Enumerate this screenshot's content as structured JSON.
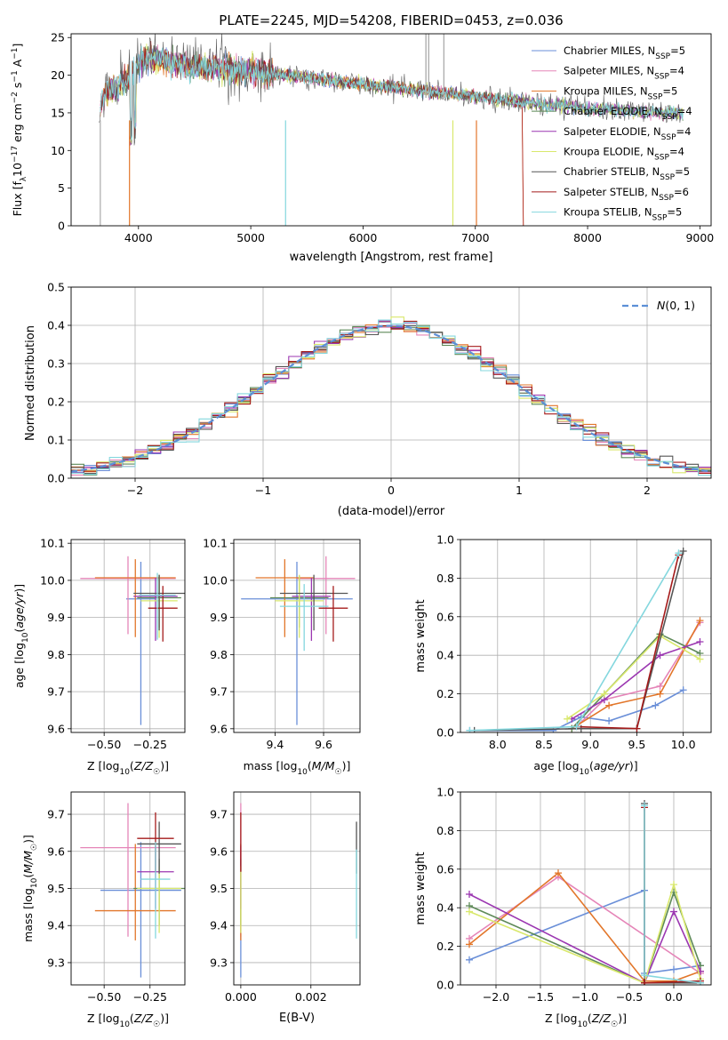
{
  "figure": {
    "title": "PLATE=2245, MJD=54208, FIBERID=0453, z=0.036"
  },
  "colors": {
    "series": [
      "#6a8fd8",
      "#e585b8",
      "#e2762a",
      "#5e8a58",
      "#9b37b1",
      "#d9e86c",
      "#4c4c4c",
      "#a51b1b",
      "#84d7de"
    ],
    "gaussian": "#5b8fd6",
    "grid": "#b0b0b0"
  },
  "chart_data": [
    {
      "id": "spectrum",
      "type": "line",
      "xlabel": "wavelength [Angstrom, rest frame]",
      "ylabel": "Flux [f_λ 10^-17 erg cm^-2 s^-1 A^-1]",
      "xlim": [
        3400,
        9100
      ],
      "ylim": [
        0,
        25.5
      ],
      "xticks": [
        4000,
        5000,
        6000,
        7000,
        8000,
        9000
      ],
      "yticks": [
        0,
        5,
        10,
        15,
        20,
        25
      ],
      "grid": false,
      "legend": "top-right",
      "data_anchors": {
        "x": [
          3650,
          3700,
          3800,
          3900,
          4000,
          4100,
          4200,
          4300,
          4500,
          4700,
          5000,
          5300,
          5600,
          5900,
          6200,
          6500,
          6800,
          7100,
          7400,
          7600,
          7800,
          8000,
          8200,
          8500,
          8800
        ],
        "y": [
          15.5,
          17.5,
          18.5,
          19.5,
          21.5,
          22.5,
          22.0,
          21.5,
          21.0,
          21.0,
          20.5,
          20.0,
          19.5,
          19.0,
          18.5,
          18.0,
          17.5,
          17.0,
          16.5,
          16.0,
          16.0,
          15.5,
          15.5,
          15.0,
          15.0
        ]
      },
      "series": [
        {
          "label": "Chabrier MILES",
          "nssp": "5"
        },
        {
          "label": "Salpeter MILES",
          "nssp": "4"
        },
        {
          "label": "Kroupa MILES",
          "nssp": "5"
        },
        {
          "label": "Chabrier ELODIE",
          "nssp": "4"
        },
        {
          "label": "Salpeter ELODIE",
          "nssp": "4"
        },
        {
          "label": "Kroupa ELODIE",
          "nssp": "4"
        },
        {
          "label": "Chabrier STELIB",
          "nssp": "5"
        },
        {
          "label": "Salpeter STELIB",
          "nssp": "6"
        },
        {
          "label": "Kroupa STELIB",
          "nssp": "5"
        }
      ]
    },
    {
      "id": "residuals",
      "type": "histogram",
      "xlabel": "(data-model)/error",
      "ylabel": "Normed distribution",
      "xlim": [
        -2.5,
        2.5
      ],
      "ylim": [
        0,
        0.5
      ],
      "xticks": [
        -2,
        -1,
        0,
        1,
        2
      ],
      "yticks": [
        0.0,
        0.1,
        0.2,
        0.3,
        0.4,
        0.5
      ],
      "grid": true,
      "legend": "top-right",
      "legend_label": "N(0,1)",
      "bin_width": 0.1,
      "bin_start": -2.5
    },
    {
      "id": "age-vs-Z",
      "type": "errorbar",
      "xlabel": "Z [log10(Z/Z☉)]",
      "ylabel": "age [log10(age/yr)]",
      "xlim": [
        -0.68,
        -0.06
      ],
      "ylim": [
        9.59,
        10.11
      ],
      "xticks": [
        -0.5,
        -0.25
      ],
      "yticks": [
        9.6,
        9.7,
        9.8,
        9.9,
        10.0,
        10.1
      ],
      "grid": true,
      "points": [
        {
          "x": -0.3,
          "xerr": 0.08,
          "y": 9.95,
          "yerr": [
            0.34,
            0.1
          ]
        },
        {
          "x": -0.37,
          "xerr": 0.26,
          "y": 10.005,
          "yerr": [
            0.15,
            0.06
          ]
        },
        {
          "x": -0.33,
          "xerr": 0.22,
          "y": 10.007,
          "yerr": [
            0.16,
            0.05
          ]
        },
        {
          "x": -0.2,
          "xerr": 0.12,
          "y": 9.953,
          "yerr": [
            0.08,
            0.06
          ]
        },
        {
          "x": -0.22,
          "xerr": 0.12,
          "y": 9.957,
          "yerr": [
            0.12,
            0.05
          ]
        },
        {
          "x": -0.2,
          "xerr": 0.1,
          "y": 9.945,
          "yerr": [
            0.1,
            0.07
          ]
        },
        {
          "x": -0.2,
          "xerr": 0.14,
          "y": 9.965,
          "yerr": [
            0.1,
            0.05
          ]
        },
        {
          "x": -0.18,
          "xerr": 0.08,
          "y": 9.925,
          "yerr": [
            0.09,
            0.06
          ]
        },
        {
          "x": -0.21,
          "xerr": 0.1,
          "y": 9.96,
          "yerr": [
            0.12,
            0.06
          ]
        }
      ]
    },
    {
      "id": "age-vs-mass",
      "type": "errorbar",
      "xlabel": "mass [log10(M/M☉)]",
      "ylabel": "",
      "xlim": [
        9.23,
        9.75
      ],
      "ylim": [
        9.59,
        10.11
      ],
      "xticks": [
        9.4,
        9.6
      ],
      "yticks": [
        9.6,
        9.7,
        9.8,
        9.9,
        10.0,
        10.1
      ],
      "grid": true,
      "points": [
        {
          "x": 9.49,
          "xerr": 0.23,
          "y": 9.95,
          "yerr": [
            0.34,
            0.1
          ]
        },
        {
          "x": 9.61,
          "xerr": 0.12,
          "y": 10.005,
          "yerr": [
            0.15,
            0.06
          ]
        },
        {
          "x": 9.44,
          "xerr": 0.12,
          "y": 10.007,
          "yerr": [
            0.16,
            0.05
          ]
        },
        {
          "x": 9.5,
          "xerr": 0.12,
          "y": 9.953,
          "yerr": [
            0.08,
            0.06
          ]
        },
        {
          "x": 9.55,
          "xerr": 0.08,
          "y": 9.957,
          "yerr": [
            0.12,
            0.05
          ]
        },
        {
          "x": 9.5,
          "xerr": 0.1,
          "y": 9.945,
          "yerr": [
            0.1,
            0.07
          ]
        },
        {
          "x": 9.56,
          "xerr": 0.14,
          "y": 9.965,
          "yerr": [
            0.1,
            0.05
          ]
        },
        {
          "x": 9.64,
          "xerr": 0.06,
          "y": 9.925,
          "yerr": [
            0.09,
            0.06
          ]
        },
        {
          "x": 9.52,
          "xerr": 0.1,
          "y": 9.93,
          "yerr": [
            0.12,
            0.06
          ]
        }
      ]
    },
    {
      "id": "mass-weight-vs-age",
      "type": "line",
      "xlabel": "age [log10(age/yr)]",
      "ylabel": "mass weight",
      "xlim": [
        7.6,
        10.3
      ],
      "ylim": [
        0,
        1
      ],
      "xticks": [
        8.0,
        8.5,
        9.0,
        9.5,
        10.0
      ],
      "yticks": [
        0.0,
        0.2,
        0.4,
        0.6,
        0.8,
        1.0
      ],
      "grid": true,
      "series": [
        {
          "x": [
            7.7,
            8.6,
            8.9,
            9.2,
            9.7,
            10.0
          ],
          "y": [
            0.01,
            0.01,
            0.08,
            0.06,
            0.14,
            0.22
          ]
        },
        {
          "x": [
            8.85,
            9.15,
            9.75,
            10.18
          ],
          "y": [
            0.03,
            0.17,
            0.24,
            0.57
          ]
        },
        {
          "x": [
            8.8,
            9.2,
            9.75,
            10.18
          ],
          "y": [
            0.02,
            0.14,
            0.2,
            0.58
          ]
        },
        {
          "x": [
            8.8,
            9.15,
            9.75,
            10.18
          ],
          "y": [
            0.02,
            0.2,
            0.51,
            0.41
          ]
        },
        {
          "x": [
            8.8,
            9.15,
            9.75,
            10.18
          ],
          "y": [
            0.07,
            0.17,
            0.4,
            0.47
          ]
        },
        {
          "x": [
            8.75,
            9.15,
            9.75,
            10.18
          ],
          "y": [
            0.07,
            0.2,
            0.5,
            0.38
          ]
        },
        {
          "x": [
            7.75,
            8.9,
            9.5,
            10.0
          ],
          "y": [
            0.01,
            0.02,
            0.02,
            0.94
          ]
        },
        {
          "x": [
            8.85,
            9.5,
            9.95
          ],
          "y": [
            0.03,
            0.02,
            0.92
          ]
        },
        {
          "x": [
            7.7,
            8.85,
            9.95
          ],
          "y": [
            0.01,
            0.03,
            0.93
          ]
        }
      ]
    },
    {
      "id": "mass-vs-Z",
      "type": "errorbar",
      "xlabel": "Z [log10(Z/Z☉)]",
      "ylabel": "mass [log10(M/M☉)]",
      "xlim": [
        -0.68,
        -0.06
      ],
      "ylim": [
        9.24,
        9.76
      ],
      "xticks": [
        -0.5,
        -0.25
      ],
      "yticks": [
        9.3,
        9.4,
        9.5,
        9.6,
        9.7
      ],
      "grid": true,
      "points": [
        {
          "x": -0.3,
          "xerr": 0.22,
          "y": 9.495,
          "yerr": [
            0.235,
            0.13
          ]
        },
        {
          "x": -0.37,
          "xerr": 0.26,
          "y": 9.61,
          "yerr": [
            0.24,
            0.12
          ]
        },
        {
          "x": -0.33,
          "xerr": 0.22,
          "y": 9.44,
          "yerr": [
            0.08,
            0.18
          ]
        },
        {
          "x": -0.2,
          "xerr": 0.14,
          "y": 9.5,
          "yerr": [
            0.1,
            0.08
          ]
        },
        {
          "x": -0.22,
          "xerr": 0.1,
          "y": 9.545,
          "yerr": [
            0.1,
            0.07
          ]
        },
        {
          "x": -0.2,
          "xerr": 0.12,
          "y": 9.5,
          "yerr": [
            0.12,
            0.06
          ]
        },
        {
          "x": -0.2,
          "xerr": 0.12,
          "y": 9.62,
          "yerr": [
            0.08,
            0.06
          ]
        },
        {
          "x": -0.22,
          "xerr": 0.1,
          "y": 9.635,
          "yerr": [
            0.09,
            0.07
          ]
        },
        {
          "x": -0.22,
          "xerr": 0.08,
          "y": 9.525,
          "yerr": [
            0.16,
            0.1
          ]
        }
      ]
    },
    {
      "id": "mass-vs-ebv",
      "type": "errorbar",
      "xlabel": "E(B-V)",
      "ylabel": "",
      "xlim": [
        -0.0002,
        0.0034
      ],
      "ylim": [
        9.24,
        9.76
      ],
      "xticks": [
        0.0,
        0.002
      ],
      "yticks": [
        9.3,
        9.4,
        9.5,
        9.6,
        9.7
      ],
      "grid": true,
      "points": [
        {
          "x": 0.0,
          "xerr": 0,
          "y": 9.49,
          "yerr": [
            0.23,
            0.13
          ]
        },
        {
          "x": 0.0,
          "xerr": 0,
          "y": 9.61,
          "yerr": [
            0.24,
            0.12
          ]
        },
        {
          "x": 0.0,
          "xerr": 0,
          "y": 9.44,
          "yerr": [
            0.08,
            0.18
          ]
        },
        {
          "x": 0.0,
          "xerr": 0,
          "y": 9.5,
          "yerr": [
            0.1,
            0.08
          ]
        },
        {
          "x": 0.0,
          "xerr": 0,
          "y": 9.545,
          "yerr": [
            0.1,
            0.07
          ]
        },
        {
          "x": 0.0,
          "xerr": 0,
          "y": 9.5,
          "yerr": [
            0.12,
            0.06
          ]
        },
        {
          "x": 0.0033,
          "xerr": 0,
          "y": 9.62,
          "yerr": [
            0.08,
            0.06
          ]
        },
        {
          "x": 0.0,
          "xerr": 0,
          "y": 9.635,
          "yerr": [
            0.09,
            0.07
          ]
        },
        {
          "x": 0.0033,
          "xerr": 0,
          "y": 9.525,
          "yerr": [
            0.16,
            0.08
          ]
        }
      ]
    },
    {
      "id": "mass-weight-vs-Z",
      "type": "line",
      "xlabel": "Z [log10(Z/Z☉)]",
      "ylabel": "mass weight",
      "xlim": [
        -2.4,
        0.42
      ],
      "ylim": [
        0,
        1
      ],
      "xticks": [
        -2.0,
        -1.5,
        -1.0,
        -0.5,
        0.0
      ],
      "yticks": [
        0.0,
        0.2,
        0.4,
        0.6,
        0.8,
        1.0
      ],
      "grid": true,
      "series": [
        {
          "x": [
            -2.3,
            -0.33,
            -0.33,
            0.0,
            0.3
          ],
          "y": [
            0.13,
            0.49,
            0.06,
            0.08,
            0.1
          ]
        },
        {
          "x": [
            -2.3,
            -1.3,
            0.3
          ],
          "y": [
            0.24,
            0.56,
            0.06
          ]
        },
        {
          "x": [
            -2.3,
            -1.3,
            -0.33,
            0.0,
            0.3
          ],
          "y": [
            0.21,
            0.58,
            0.02,
            0.02,
            0.07
          ]
        },
        {
          "x": [
            -2.3,
            -0.33,
            0.0,
            0.3
          ],
          "y": [
            0.41,
            0.01,
            0.48,
            0.1
          ]
        },
        {
          "x": [
            -2.3,
            -0.33,
            0.0,
            0.3
          ],
          "y": [
            0.47,
            0.01,
            0.38,
            0.07
          ]
        },
        {
          "x": [
            -2.3,
            -0.33,
            0.0,
            0.3
          ],
          "y": [
            0.38,
            0.01,
            0.52,
            0.03
          ]
        },
        {
          "x": [
            -0.33,
            -0.33,
            0.3
          ],
          "y": [
            0.94,
            0.01,
            0.01
          ]
        },
        {
          "x": [
            -0.33,
            -0.33,
            0.3
          ],
          "y": [
            0.92,
            0.01,
            0.02
          ]
        },
        {
          "x": [
            -0.33,
            -0.33,
            0.3
          ],
          "y": [
            0.93,
            0.05,
            0.01
          ]
        }
      ]
    }
  ]
}
